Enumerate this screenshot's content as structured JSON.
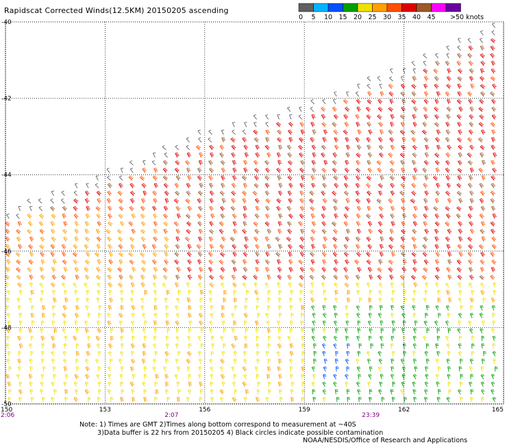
{
  "title": "Rapidscat Corrected Winds(12.5KM) 20150205 ascending",
  "legend": {
    "colors": [
      "#606060",
      "#00b4ff",
      "#0050ff",
      "#00a000",
      "#f0e000",
      "#ffa000",
      "#ff5000",
      "#e00000",
      "#9b5a28",
      "#ff00ff",
      "#6a00a0"
    ],
    "labels": [
      "0",
      "5",
      "10",
      "15",
      "20",
      "25",
      "30",
      "35",
      "40",
      "45",
      ">50 knots"
    ]
  },
  "chart_data": {
    "type": "wind barb map",
    "x_ticks": [
      "150",
      "153",
      "156",
      "159",
      "162",
      "165"
    ],
    "y_ticks": [
      "-40",
      "-42",
      "-44",
      "-46",
      "-48",
      "-50"
    ],
    "xlim": [
      150,
      165
    ],
    "ylim": [
      -50,
      -40
    ],
    "grid": "dotted",
    "times": [
      {
        "label": "2:06",
        "lon": 150
      },
      {
        "label": "2:07",
        "lon": 155
      },
      {
        "label": "23:39",
        "lon": 161
      }
    ],
    "swath_edge": [
      {
        "lon": 150.0,
        "lat": -45.0
      },
      {
        "lon": 153.0,
        "lat": -44.0
      },
      {
        "lon": 156.0,
        "lat": -42.9
      },
      {
        "lon": 159.0,
        "lat": -42.2
      },
      {
        "lon": 162.0,
        "lat": -41.2
      },
      {
        "lon": 165.0,
        "lat": -40.0
      }
    ],
    "speed_regions": [
      {
        "region": "northern swath edge band",
        "speed_knots": "0-5"
      },
      {
        "region": "northeast, around 156-165E, 41-45S",
        "speed_knots": "35-45"
      },
      {
        "region": "central, around 153-165E, 44-46S",
        "speed_knots": "30-40"
      },
      {
        "region": "west, around 150-155E, 45-47S",
        "speed_knots": "25-30"
      },
      {
        "region": "south, around 150-159E, 47-50S",
        "speed_knots": "20-25"
      },
      {
        "region": "southeast, around 159-165E, 47.5-50S",
        "speed_knots": "15-20"
      },
      {
        "region": "small pocket near 160E, 48.5-49.5S",
        "speed_knots": "10-15"
      }
    ]
  },
  "notes": {
    "line1": "Note: 1) Times are GMT 2)Times along bottom correspond to measurement at ~40S",
    "line2": "3)Data buffer is 22 hrs from 20150205 4) Black circles indicate possible contamination",
    "credit": "NOAA/NESDIS/Office of Research and Applications"
  }
}
